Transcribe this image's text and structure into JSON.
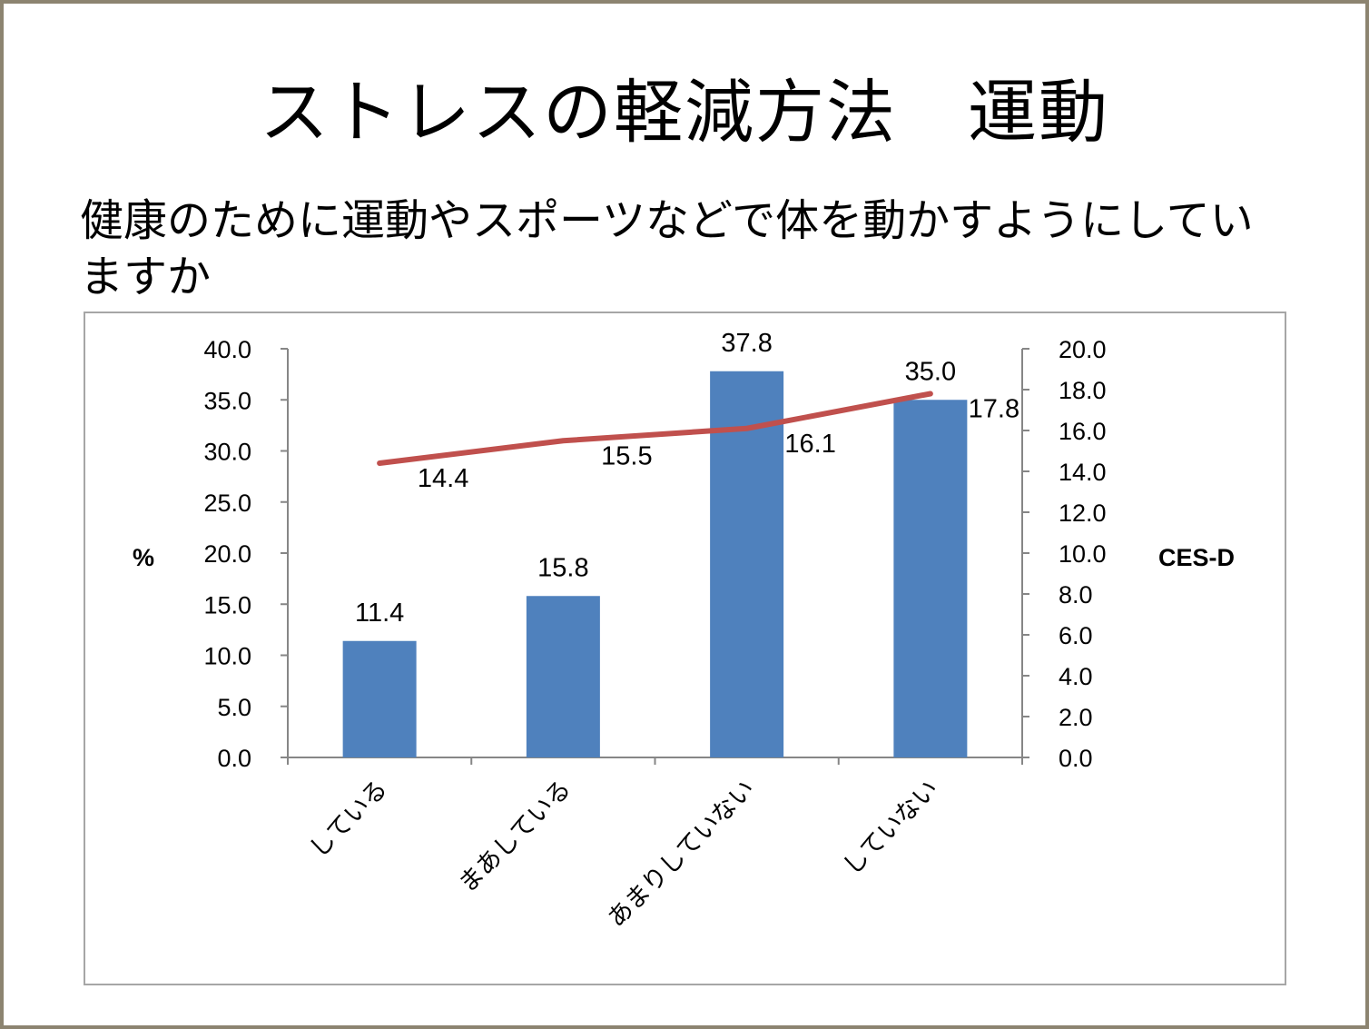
{
  "slide": {
    "title": "ストレスの軽減方法　運動",
    "question": "健康のために運動やスポーツなどで体を動かすようにしていますか"
  },
  "chart_data": {
    "type": "bar",
    "categories": [
      "している",
      "まあしている",
      "あまりしていない",
      "していない"
    ],
    "series": [
      {
        "values": [
          11.4,
          15.8,
          37.8,
          35.0
        ],
        "axis": "left",
        "color": "#4f81bd",
        "kind": "bar"
      },
      {
        "values": [
          14.4,
          15.5,
          16.1,
          17.8
        ],
        "axis": "right",
        "color": "#c0504d",
        "kind": "line"
      }
    ],
    "ylabel_left": "%",
    "ylabel_right": "CES-D",
    "ylim_left": [
      0,
      40
    ],
    "ylim_right": [
      0,
      20
    ],
    "yticks_left": [
      "0.0",
      "5.0",
      "10.0",
      "15.0",
      "20.0",
      "25.0",
      "30.0",
      "35.0",
      "40.0"
    ],
    "yticks_right": [
      "0.0",
      "2.0",
      "4.0",
      "6.0",
      "8.0",
      "10.0",
      "12.0",
      "14.0",
      "16.0",
      "18.0",
      "20.0"
    ],
    "bar_labels": [
      "11.4",
      "15.8",
      "37.8",
      "35.0"
    ],
    "line_labels": [
      "14.4",
      "15.5",
      "16.1",
      "17.8"
    ],
    "grid": false,
    "legend": "none"
  }
}
